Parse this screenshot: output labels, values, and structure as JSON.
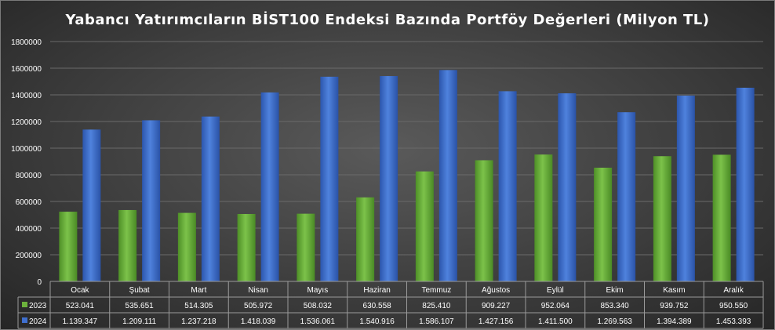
{
  "chart_data": {
    "type": "bar",
    "title": "Yabancı Yatırımcıların BİST100 Endeksi Bazında Portföy Değerleri (Milyon TL)",
    "categories": [
      "Ocak",
      "Şubat",
      "Mart",
      "Nisan",
      "Mayıs",
      "Haziran",
      "Temmuz",
      "Ağustos",
      "Eylül",
      "Ekim",
      "Kasım",
      "Aralık"
    ],
    "series": [
      {
        "name": "2023",
        "color": "#6cb23c",
        "values": [
          523041,
          535651,
          514305,
          505972,
          508032,
          630558,
          825410,
          909227,
          952064,
          853340,
          939752,
          950550
        ],
        "labels": [
          "523.041",
          "535.651",
          "514.305",
          "505.972",
          "508.032",
          "630.558",
          "825.410",
          "909.227",
          "952.064",
          "853.340",
          "939.752",
          "950.550"
        ]
      },
      {
        "name": "2024",
        "color": "#3f6fcf",
        "values": [
          1139347,
          1209111,
          1237218,
          1418039,
          1536061,
          1540916,
          1586107,
          1427156,
          1411500,
          1269563,
          1394389,
          1453393
        ],
        "labels": [
          "1.139.347",
          "1.209.111",
          "1.237.218",
          "1.418.039",
          "1.536.061",
          "1.540.916",
          "1.586.107",
          "1.427.156",
          "1.411.500",
          "1.269.563",
          "1.394.389",
          "1.453.393"
        ]
      }
    ],
    "yticks": [
      "0",
      "200000",
      "400000",
      "600000",
      "800000",
      "1000000",
      "1200000",
      "1400000",
      "1600000",
      "1800000"
    ],
    "ylim": [
      0,
      1800000
    ],
    "grid": true,
    "legend": "data-table"
  }
}
